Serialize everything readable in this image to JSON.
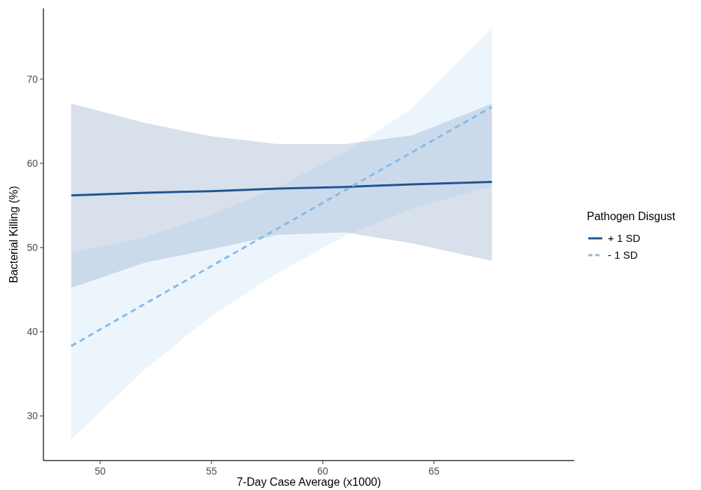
{
  "chart_data": {
    "type": "line",
    "xlabel": "7-Day Case Average (x1000)",
    "ylabel": "Bacterial Killing (%)",
    "legend_title": "Pathogen Disgust",
    "legend": "right",
    "grid": false,
    "marker": "none",
    "xlim": [
      47.45,
      71.3
    ],
    "xticks": [
      50,
      55,
      60,
      65
    ],
    "ylim": [
      24.7,
      78.4
    ],
    "yticks": [
      30,
      40,
      50,
      60,
      70
    ],
    "series": [
      {
        "name": "+ 1 SD",
        "color": "#1f5591",
        "line_style": "solid",
        "x": [
          48.7,
          52,
          55,
          58,
          61,
          64,
          67.6
        ],
        "values": [
          56.2,
          56.5,
          56.7,
          57.0,
          57.2,
          57.5,
          57.8
        ],
        "lower": [
          45.2,
          48.2,
          49.8,
          51.5,
          51.8,
          50.5,
          48.4
        ],
        "upper": [
          67.1,
          64.8,
          63.2,
          62.3,
          62.3,
          63.3,
          67.1
        ]
      },
      {
        "name": "- 1 SD",
        "color": "#85bbe8",
        "line_style": "dashed",
        "x": [
          48.7,
          52,
          55,
          58,
          61,
          64,
          67.6
        ],
        "values": [
          38.3,
          43.3,
          47.8,
          52.3,
          56.8,
          61.3,
          66.7
        ],
        "lower": [
          27.2,
          35.5,
          41.9,
          47.0,
          51.4,
          54.6,
          57.3
        ],
        "upper": [
          49.4,
          51.2,
          53.9,
          57.2,
          61.3,
          66.5,
          76.1
        ]
      }
    ]
  }
}
